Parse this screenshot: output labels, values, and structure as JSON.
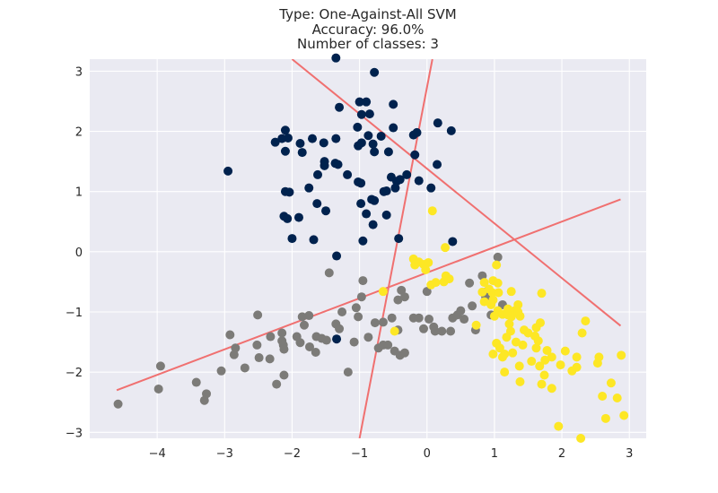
{
  "title_lines": [
    "Type: One-Against-All SVM",
    "Accuracy: 96.0%",
    "Number of classes: 3"
  ],
  "chart_data": {
    "type": "scatter",
    "title": "Type: One-Against-All SVM\nAccuracy: 96.0%\nNumber of classes: 3",
    "xlabel": "",
    "ylabel": "",
    "xlim": [
      -5.0,
      3.25
    ],
    "ylim": [
      -3.1,
      3.2
    ],
    "xticks": [
      -4,
      -3,
      -2,
      -1,
      0,
      1,
      2,
      3
    ],
    "yticks": [
      -3,
      -2,
      -1,
      0,
      1,
      2,
      3
    ],
    "xtick_labels": [
      "−4",
      "−3",
      "−2",
      "−1",
      "0",
      "1",
      "2",
      "3"
    ],
    "ytick_labels": [
      "−3",
      "−2",
      "−1",
      "0",
      "1",
      "2",
      "3"
    ],
    "grid": true,
    "background": "#eaeaf2",
    "boundary_color": "#f07070",
    "boundaries": [
      {
        "x": [
          -2.0,
          2.87
        ],
        "y": [
          3.2,
          -1.23
        ]
      },
      {
        "x": [
          -1.0,
          0.08
        ],
        "y": [
          -3.1,
          3.2
        ]
      },
      {
        "x": [
          -4.6,
          2.87
        ],
        "y": [
          -2.3,
          0.87
        ]
      }
    ],
    "series": [
      {
        "color": "#00224e",
        "points": [
          [
            -1.35,
            3.22
          ],
          [
            -0.78,
            2.98
          ],
          [
            -1.0,
            2.49
          ],
          [
            -0.9,
            2.49
          ],
          [
            -0.5,
            2.45
          ],
          [
            -1.3,
            2.4
          ],
          [
            -0.97,
            2.28
          ],
          [
            -0.85,
            2.29
          ],
          [
            0.16,
            2.14
          ],
          [
            -1.03,
            2.07
          ],
          [
            -0.5,
            2.06
          ],
          [
            0.36,
            2.01
          ],
          [
            -2.1,
            2.02
          ],
          [
            -2.15,
            1.88
          ],
          [
            -2.06,
            1.89
          ],
          [
            -2.25,
            1.82
          ],
          [
            -1.7,
            1.88
          ],
          [
            -1.35,
            1.88
          ],
          [
            -0.87,
            1.93
          ],
          [
            -0.68,
            1.92
          ],
          [
            -0.97,
            1.81
          ],
          [
            -0.2,
            1.94
          ],
          [
            -0.15,
            1.98
          ],
          [
            -1.53,
            1.81
          ],
          [
            -1.88,
            1.8
          ],
          [
            -0.8,
            1.79
          ],
          [
            -1.02,
            1.76
          ],
          [
            -2.1,
            1.67
          ],
          [
            -1.85,
            1.65
          ],
          [
            -0.57,
            1.66
          ],
          [
            -0.78,
            1.66
          ],
          [
            -1.52,
            1.5
          ],
          [
            -1.52,
            1.43
          ],
          [
            -1.36,
            1.47
          ],
          [
            -1.32,
            1.45
          ],
          [
            -0.18,
            1.61
          ],
          [
            -2.95,
            1.34
          ],
          [
            -1.62,
            1.28
          ],
          [
            -1.18,
            1.28
          ],
          [
            -0.3,
            1.28
          ],
          [
            -0.53,
            1.24
          ],
          [
            -0.45,
            1.17
          ],
          [
            0.15,
            1.45
          ],
          [
            -1.02,
            1.16
          ],
          [
            -0.98,
            1.14
          ],
          [
            -0.4,
            1.2
          ],
          [
            -1.75,
            1.06
          ],
          [
            -0.47,
            1.06
          ],
          [
            -0.12,
            1.18
          ],
          [
            -2.1,
            1.0
          ],
          [
            -0.6,
            1.01
          ],
          [
            -0.64,
            1.0
          ],
          [
            -2.04,
            0.99
          ],
          [
            -0.78,
            0.85
          ],
          [
            -0.82,
            0.87
          ],
          [
            0.06,
            1.06
          ],
          [
            -1.63,
            0.8
          ],
          [
            -0.98,
            0.8
          ],
          [
            -1.5,
            0.68
          ],
          [
            -2.12,
            0.59
          ],
          [
            -1.9,
            0.57
          ],
          [
            -0.9,
            0.63
          ],
          [
            -0.6,
            0.61
          ],
          [
            -2.07,
            0.55
          ],
          [
            -0.8,
            0.45
          ],
          [
            -2.0,
            0.22
          ],
          [
            -1.68,
            0.2
          ],
          [
            -0.95,
            0.18
          ],
          [
            -0.42,
            0.22
          ],
          [
            0.38,
            0.17
          ],
          [
            -1.34,
            -0.07
          ],
          [
            -1.34,
            -1.45
          ]
        ]
      },
      {
        "color": "#7c7b78",
        "points": [
          [
            -4.58,
            -2.53
          ],
          [
            -3.95,
            -1.9
          ],
          [
            -3.98,
            -2.28
          ],
          [
            -3.42,
            -2.17
          ],
          [
            -3.27,
            -2.36
          ],
          [
            -3.3,
            -2.47
          ],
          [
            -3.05,
            -1.98
          ],
          [
            -2.92,
            -1.38
          ],
          [
            -2.84,
            -1.6
          ],
          [
            -2.86,
            -1.71
          ],
          [
            -2.7,
            -1.93
          ],
          [
            -2.51,
            -1.05
          ],
          [
            -2.52,
            -1.55
          ],
          [
            -2.49,
            -1.76
          ],
          [
            -2.33,
            -1.78
          ],
          [
            -2.32,
            -1.41
          ],
          [
            -2.23,
            -2.2
          ],
          [
            -2.15,
            -1.48
          ],
          [
            -2.15,
            -1.35
          ],
          [
            -2.13,
            -1.55
          ],
          [
            -2.12,
            -1.62
          ],
          [
            -2.12,
            -2.05
          ],
          [
            -1.93,
            -1.41
          ],
          [
            -1.88,
            -1.51
          ],
          [
            -1.85,
            -1.08
          ],
          [
            -1.82,
            -1.22
          ],
          [
            -1.75,
            -1.06
          ],
          [
            -1.74,
            -1.58
          ],
          [
            -1.65,
            -1.67
          ],
          [
            -1.64,
            -1.41
          ],
          [
            -1.56,
            -1.44
          ],
          [
            -1.49,
            -1.47
          ],
          [
            -1.45,
            -0.35
          ],
          [
            -1.35,
            -1.2
          ],
          [
            -1.3,
            -1.28
          ],
          [
            -1.26,
            -1.0
          ],
          [
            -1.17,
            -2.0
          ],
          [
            -1.08,
            -1.5
          ],
          [
            -1.05,
            -0.93
          ],
          [
            -1.02,
            -1.08
          ],
          [
            -0.97,
            -0.75
          ],
          [
            -0.95,
            -0.48
          ],
          [
            -0.77,
            -1.18
          ],
          [
            -0.72,
            -1.6
          ],
          [
            -0.65,
            -1.17
          ],
          [
            -0.65,
            -1.55
          ],
          [
            -0.58,
            -1.55
          ],
          [
            -0.52,
            -1.1
          ],
          [
            -0.48,
            -1.65
          ],
          [
            -0.43,
            -1.3
          ],
          [
            -0.43,
            -0.8
          ],
          [
            -0.4,
            -1.72
          ],
          [
            -0.38,
            -0.64
          ],
          [
            -0.33,
            -0.75
          ],
          [
            -0.33,
            -1.68
          ],
          [
            -0.2,
            -1.1
          ],
          [
            -0.12,
            -1.1
          ],
          [
            -0.05,
            -1.28
          ],
          [
            0.03,
            -1.12
          ],
          [
            0.1,
            -1.25
          ],
          [
            0.12,
            -1.32
          ],
          [
            0.22,
            -1.32
          ],
          [
            0.35,
            -1.32
          ],
          [
            0.38,
            -1.1
          ],
          [
            0.45,
            -1.05
          ],
          [
            0.5,
            -0.98
          ],
          [
            0.55,
            -1.12
          ],
          [
            0.63,
            -0.52
          ],
          [
            0.67,
            -0.9
          ],
          [
            0.72,
            -1.3
          ],
          [
            0.82,
            -0.4
          ],
          [
            0.87,
            -0.75
          ],
          [
            0.9,
            -0.65
          ],
          [
            0.95,
            -1.05
          ],
          [
            1.05,
            -0.09
          ],
          [
            1.12,
            -0.88
          ],
          [
            -0.87,
            -1.42
          ],
          [
            0.0,
            -0.66
          ]
        ]
      },
      {
        "color": "#fde725",
        "points": [
          [
            -0.2,
            -0.12
          ],
          [
            -0.18,
            -0.22
          ],
          [
            -0.12,
            -0.17
          ],
          [
            -0.05,
            -0.21
          ],
          [
            0.02,
            -0.18
          ],
          [
            -0.02,
            -0.3
          ],
          [
            0.06,
            -0.55
          ],
          [
            0.13,
            -0.51
          ],
          [
            0.25,
            -0.5
          ],
          [
            0.28,
            -0.4
          ],
          [
            0.33,
            -0.45
          ],
          [
            0.08,
            0.68
          ],
          [
            0.27,
            0.07
          ],
          [
            0.82,
            -0.67
          ],
          [
            0.85,
            -0.51
          ],
          [
            0.92,
            -0.62
          ],
          [
            0.98,
            -0.48
          ],
          [
            1.05,
            -0.52
          ],
          [
            1.03,
            -0.22
          ],
          [
            0.97,
            -0.68
          ],
          [
            1.06,
            -0.68
          ],
          [
            0.98,
            -0.8
          ],
          [
            0.85,
            -0.83
          ],
          [
            0.95,
            -0.88
          ],
          [
            1.05,
            -0.98
          ],
          [
            1.12,
            -1.04
          ],
          [
            1.2,
            -0.95
          ],
          [
            1.26,
            -1.02
          ],
          [
            1.3,
            -0.98
          ],
          [
            1.38,
            -1.07
          ],
          [
            1.44,
            -1.3
          ],
          [
            1.22,
            -1.2
          ],
          [
            1.24,
            -1.32
          ],
          [
            1.18,
            -1.42
          ],
          [
            1.32,
            -1.5
          ],
          [
            1.42,
            -1.55
          ],
          [
            1.03,
            -1.52
          ],
          [
            1.08,
            -1.6
          ],
          [
            1.12,
            -1.75
          ],
          [
            0.98,
            -1.7
          ],
          [
            1.15,
            -1.7
          ],
          [
            1.27,
            -1.68
          ],
          [
            1.37,
            -1.9
          ],
          [
            1.55,
            -1.82
          ],
          [
            1.62,
            -1.6
          ],
          [
            1.65,
            -1.48
          ],
          [
            1.67,
            -1.9
          ],
          [
            1.7,
            -2.2
          ],
          [
            1.74,
            -2.05
          ],
          [
            1.78,
            -1.64
          ],
          [
            1.85,
            -2.27
          ],
          [
            1.5,
            -1.35
          ],
          [
            1.62,
            -1.26
          ],
          [
            1.68,
            -1.18
          ],
          [
            1.7,
            -0.69
          ],
          [
            1.25,
            -0.66
          ],
          [
            1.35,
            -0.88
          ],
          [
            1.2,
            -1.05
          ],
          [
            1.15,
            -2.0
          ],
          [
            1.38,
            -2.16
          ],
          [
            1.75,
            -1.8
          ],
          [
            1.85,
            -1.75
          ],
          [
            1.95,
            -2.9
          ],
          [
            1.98,
            -1.88
          ],
          [
            2.05,
            -1.65
          ],
          [
            2.15,
            -1.98
          ],
          [
            2.22,
            -1.92
          ],
          [
            2.3,
            -1.35
          ],
          [
            2.35,
            -1.15
          ],
          [
            2.22,
            -1.75
          ],
          [
            2.53,
            -1.85
          ],
          [
            2.55,
            -1.75
          ],
          [
            2.6,
            -2.4
          ],
          [
            2.65,
            -2.77
          ],
          [
            2.73,
            -2.18
          ],
          [
            2.82,
            -2.43
          ],
          [
            2.88,
            -1.72
          ],
          [
            2.92,
            -2.72
          ],
          [
            1.0,
            -1.07
          ],
          [
            0.73,
            -1.22
          ],
          [
            -0.48,
            -1.32
          ],
          [
            -0.65,
            -0.66
          ],
          [
            1.25,
            -1.08
          ],
          [
            1.35,
            -1.0
          ],
          [
            1.6,
            -1.4
          ],
          [
            2.28,
            -3.1
          ]
        ]
      }
    ]
  }
}
